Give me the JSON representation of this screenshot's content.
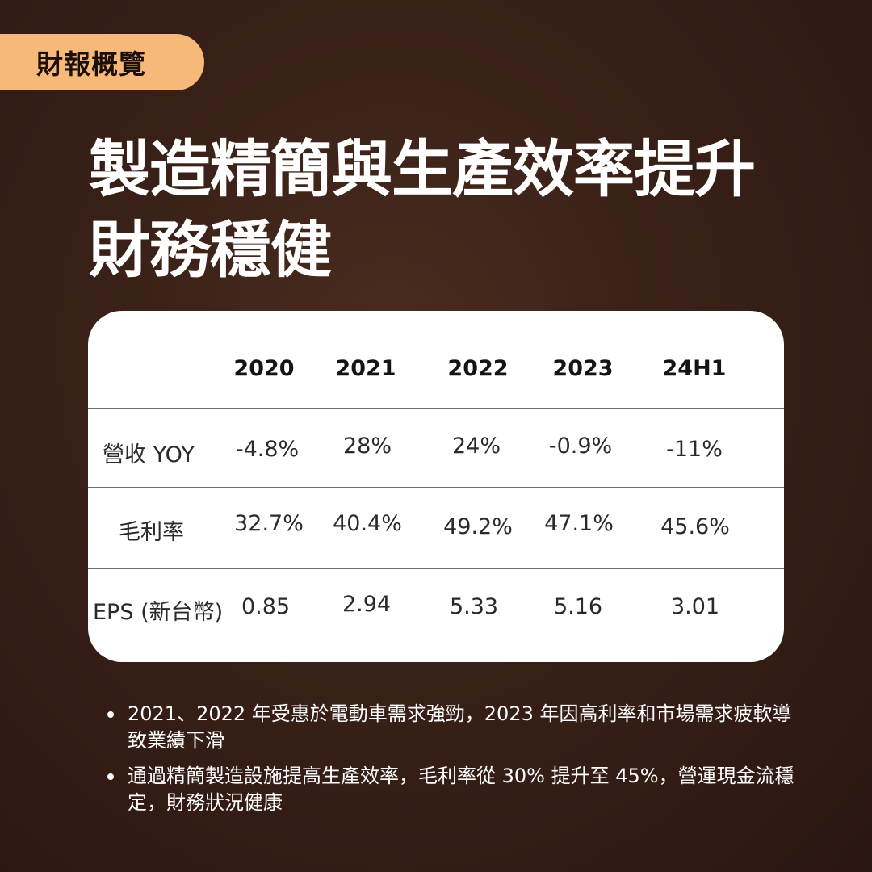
{
  "tag": "財報概覽",
  "headline": {
    "line1": "製造精簡與生產效率提升",
    "line2": "財務穩健"
  },
  "table": {
    "columns": [
      "2020",
      "2021",
      "2022",
      "2023",
      "24H1"
    ],
    "rows": [
      {
        "label": "營收 YOY",
        "values": [
          "-4.8%",
          "28%",
          "24%",
          "-0.9%",
          "-11%"
        ]
      },
      {
        "label": "毛利率",
        "values": [
          "32.7%",
          "40.4%",
          "49.2%",
          "47.1%",
          "45.6%"
        ]
      },
      {
        "label": "EPS (新台幣)",
        "values": [
          "0.85",
          "2.94",
          "5.33",
          "5.16",
          "3.01"
        ]
      }
    ]
  },
  "bullets": [
    "2021、2022 年受惠於電動車需求強勁，2023 年因高利率和市場需求疲軟導致業績下滑",
    "通過精簡製造設施提高生產效率，毛利率從 30% 提升至 45%，營運現金流穩定，財務狀況健康"
  ]
}
